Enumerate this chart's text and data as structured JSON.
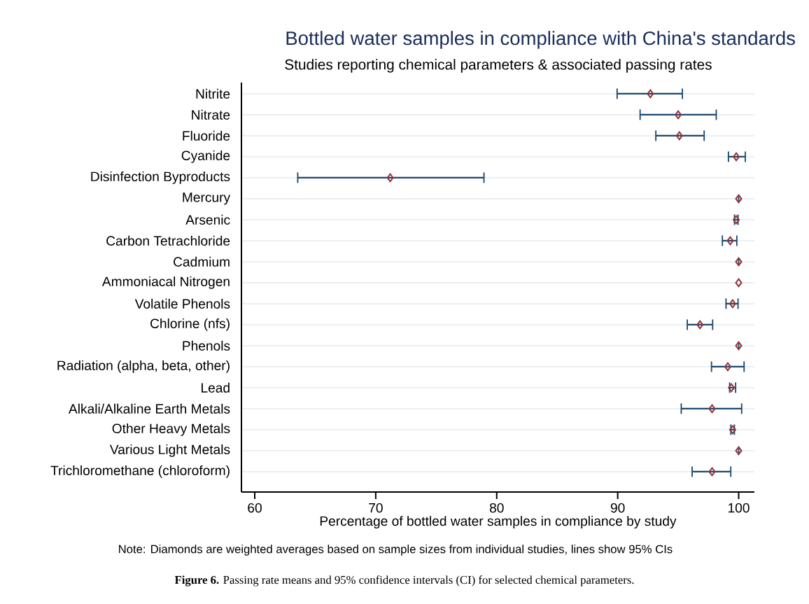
{
  "chart_data": {
    "type": "scatter",
    "orientation": "horizontal",
    "title": "Bottled water samples in compliance with China's standards",
    "subtitle": "Studies reporting chemical parameters & associated passing rates",
    "xlabel": "Percentage of bottled water samples in compliance by study",
    "annotations": [
      "Note: Diamonds are weighted averages based on sample sizes from individual studies, lines show 95% CIs",
      "**Figure 6.** Passing rate means and 95% confidence intervals (CI) for selected chemical parameters."
    ],
    "categories": [
      "Nitrite",
      "Nitrate",
      "Fluoride",
      "Cyanide",
      "Disinfection Byproducts",
      "Mercury",
      "Arsenic",
      "Carbon Tetrachloride",
      "Cadmium",
      "Ammoniacal Nitrogen",
      "Volatile Phenols",
      "Chlorine (nfs)",
      "Phenols",
      "Radiation (alpha, beta, other)",
      "Lead",
      "Alkali/Alkaline Earth Metals",
      "Other Heavy Metals",
      "Various Light Metals",
      "Trichloromethane (chloroform)"
    ],
    "values": [
      92.7,
      95.0,
      95.1,
      99.8,
      71.2,
      100,
      99.8,
      99.3,
      100,
      100,
      99.5,
      96.8,
      100,
      99.1,
      99.4,
      97.8,
      99.5,
      100,
      97.8
    ],
    "errors": [
      [
        89.9,
        95.4
      ],
      [
        91.8,
        98.2
      ],
      [
        93.1,
        97.2
      ],
      [
        99.1,
        100.6
      ],
      [
        63.5,
        79.0
      ],
      [
        100,
        100
      ],
      [
        99.6,
        100.0
      ],
      [
        98.6,
        99.9
      ],
      [
        100,
        100
      ],
      null,
      [
        98.9,
        100.0
      ],
      [
        95.7,
        97.9
      ],
      [
        100,
        100
      ],
      [
        97.7,
        100.5
      ],
      [
        99.2,
        99.8
      ],
      [
        95.2,
        100.3
      ],
      [
        99.3,
        99.7
      ],
      [
        100,
        100
      ],
      [
        96.1,
        99.4
      ]
    ],
    "color": "#90353b",
    "marker": "diamond",
    "xlim": [
      58.9,
      101.3
    ],
    "xticks": [
      60,
      70,
      80,
      90,
      100
    ],
    "grid": "y"
  }
}
